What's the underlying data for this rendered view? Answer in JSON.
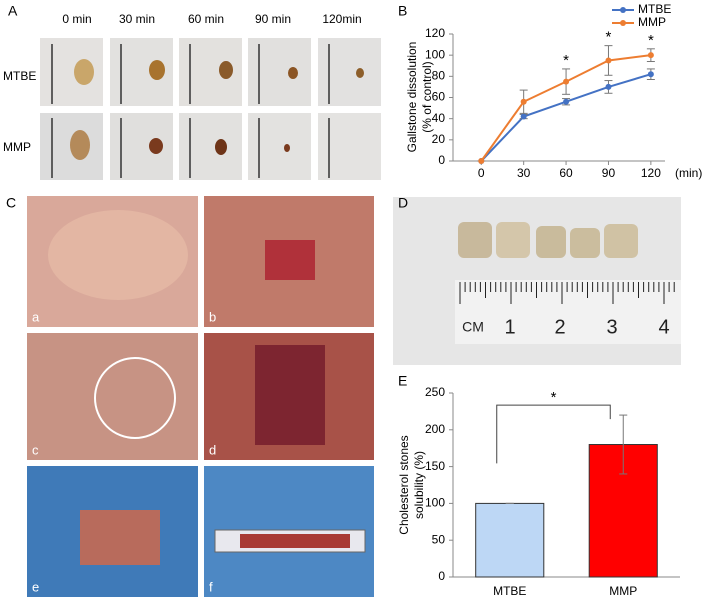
{
  "panel_labels": [
    "A",
    "B",
    "C",
    "D",
    "E"
  ],
  "panel_a": {
    "columns": [
      "0 min",
      "30 min",
      "60 min",
      "90 min",
      "120min"
    ],
    "rows": [
      "MTBE",
      "MMP"
    ]
  },
  "panel_c": {
    "photo_labels": [
      "a",
      "b",
      "c",
      "d",
      "e",
      "f"
    ]
  },
  "panel_d": {
    "ruler_labels": [
      "CM",
      "1",
      "2",
      "3",
      "4"
    ]
  },
  "chart_data": [
    {
      "type": "line",
      "x": [
        0,
        30,
        60,
        90,
        120
      ],
      "series": [
        {
          "name": "MTBE",
          "color": "#4472c4",
          "values": [
            0,
            42,
            56,
            70,
            82
          ],
          "errors": [
            0,
            2,
            3,
            6,
            5
          ]
        },
        {
          "name": "MMP",
          "color": "#ed7d31",
          "values": [
            0,
            56,
            75,
            95,
            100
          ],
          "errors": [
            0,
            11,
            12,
            14,
            6
          ]
        }
      ],
      "xlabel": "(min)",
      "ylabel": [
        "Gallstone dissolution",
        "(% of control)"
      ],
      "xlim": [
        -20,
        130
      ],
      "xticks": [
        0,
        30,
        60,
        90,
        120
      ],
      "ylim": [
        0,
        120
      ],
      "yticks": [
        0,
        20,
        40,
        60,
        80,
        100,
        120
      ],
      "annotations": [
        {
          "x": 60,
          "text": "*"
        },
        {
          "x": 90,
          "text": "*"
        },
        {
          "x": 120,
          "text": "*"
        }
      ],
      "legend": "upper right"
    },
    {
      "type": "bar",
      "categories": [
        "MTBE",
        "MMP"
      ],
      "values": [
        100,
        180
      ],
      "errors": [
        0,
        40
      ],
      "colors": [
        "#bdd7f5",
        "#ff0000"
      ],
      "ylabel": [
        "Cholesterol stones",
        "solubility (%)"
      ],
      "ylim": [
        0,
        250
      ],
      "yticks": [
        0,
        50,
        100,
        150,
        200,
        250
      ],
      "annotations": [
        {
          "from": 0,
          "to": 1,
          "text": "*"
        }
      ]
    }
  ]
}
